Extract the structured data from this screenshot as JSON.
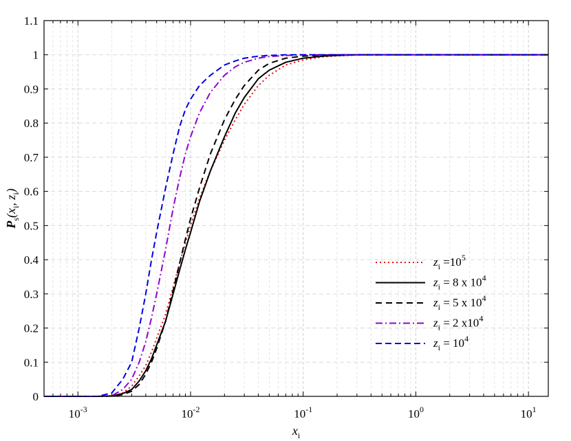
{
  "chart_data": {
    "type": "line",
    "xscale": "log",
    "xlim": [
      0.0005,
      15
    ],
    "ylim": [
      0,
      1.1
    ],
    "grid": true,
    "legend_position": "bottom-right",
    "xlabel": {
      "main": "x",
      "sub": "i"
    },
    "ylabel": {
      "main": "P",
      "sub1": "s",
      "mid1": "(x",
      "sub2": "i",
      "mid2": ", z",
      "sub3": "i",
      "end": ")"
    },
    "yticks": [
      "0",
      "0.1",
      "0.2",
      "0.3",
      "0.4",
      "0.5",
      "0.6",
      "0.7",
      "0.8",
      "0.9",
      "1",
      "1.1"
    ],
    "xticks": [
      {
        "base": "10",
        "exp": "-3",
        "value": 0.001
      },
      {
        "base": "10",
        "exp": "-2",
        "value": 0.01
      },
      {
        "base": "10",
        "exp": "-1",
        "value": 0.1
      },
      {
        "base": "10",
        "exp": "0",
        "value": 1
      },
      {
        "base": "10",
        "exp": "1",
        "value": 10
      }
    ],
    "x": [
      0.0005,
      0.001,
      0.0015,
      0.002,
      0.0025,
      0.003,
      0.0035,
      0.004,
      0.0045,
      0.005,
      0.006,
      0.007,
      0.008,
      0.009,
      0.01,
      0.012,
      0.015,
      0.02,
      0.025,
      0.03,
      0.04,
      0.05,
      0.07,
      0.1,
      0.15,
      0.2,
      0.3,
      0.5,
      1,
      2,
      5,
      10,
      15
    ],
    "series": [
      {
        "label": {
          "pre": "z",
          "sub": "i",
          "text": " =10",
          "sup": "5"
        },
        "color": "#e8000b",
        "dash": "2 4",
        "width": 2,
        "values": [
          0,
          0,
          0,
          0.001,
          0.01,
          0.03,
          0.06,
          0.09,
          0.13,
          0.17,
          0.24,
          0.32,
          0.39,
          0.45,
          0.5,
          0.58,
          0.66,
          0.75,
          0.81,
          0.855,
          0.91,
          0.94,
          0.97,
          0.985,
          0.994,
          0.997,
          0.999,
          1,
          1,
          1,
          1,
          1,
          1
        ]
      },
      {
        "label": {
          "pre": "z",
          "sub": "i",
          "text": " = 8 x 10",
          "sup": "4"
        },
        "color": "#000000",
        "dash": "",
        "width": 2,
        "values": [
          0,
          0,
          0,
          0.001,
          0.008,
          0.02,
          0.045,
          0.075,
          0.11,
          0.15,
          0.22,
          0.3,
          0.37,
          0.43,
          0.48,
          0.57,
          0.66,
          0.76,
          0.83,
          0.875,
          0.93,
          0.955,
          0.978,
          0.99,
          0.996,
          0.998,
          1,
          1,
          1,
          1,
          1,
          1,
          1
        ]
      },
      {
        "label": {
          "pre": "z",
          "sub": "i",
          "text": " = 5 x 10",
          "sup": "4"
        },
        "color": "#000000",
        "dash": "9 6",
        "width": 2,
        "values": [
          0,
          0,
          0,
          0.001,
          0.005,
          0.015,
          0.035,
          0.065,
          0.1,
          0.14,
          0.22,
          0.31,
          0.39,
          0.46,
          0.52,
          0.61,
          0.71,
          0.81,
          0.87,
          0.91,
          0.955,
          0.975,
          0.99,
          0.996,
          0.999,
          1,
          1,
          1,
          1,
          1,
          1,
          1,
          1
        ]
      },
      {
        "label": {
          "pre": "z",
          "sub": "i",
          "text": " = 2 x10",
          "sup": "4"
        },
        "color": "#9400d3",
        "dash": "10 4 2 4",
        "width": 2,
        "values": [
          0,
          0,
          0,
          0.002,
          0.02,
          0.05,
          0.1,
          0.16,
          0.23,
          0.3,
          0.43,
          0.55,
          0.64,
          0.71,
          0.76,
          0.83,
          0.89,
          0.94,
          0.965,
          0.978,
          0.99,
          0.995,
          0.998,
          1,
          1,
          1,
          1,
          1,
          1,
          1,
          1,
          1,
          1
        ]
      },
      {
        "label": {
          "pre": "z",
          "sub": "i",
          "text": " = 10",
          "sup": "4"
        },
        "color": "#0000e0",
        "dash": "9 5",
        "width": 2,
        "values": [
          0,
          0,
          0,
          0.01,
          0.05,
          0.1,
          0.2,
          0.3,
          0.4,
          0.48,
          0.61,
          0.71,
          0.79,
          0.84,
          0.87,
          0.91,
          0.94,
          0.97,
          0.982,
          0.99,
          0.996,
          0.998,
          1,
          1,
          1,
          1,
          1,
          1,
          1,
          1,
          1,
          1,
          1
        ]
      }
    ]
  }
}
